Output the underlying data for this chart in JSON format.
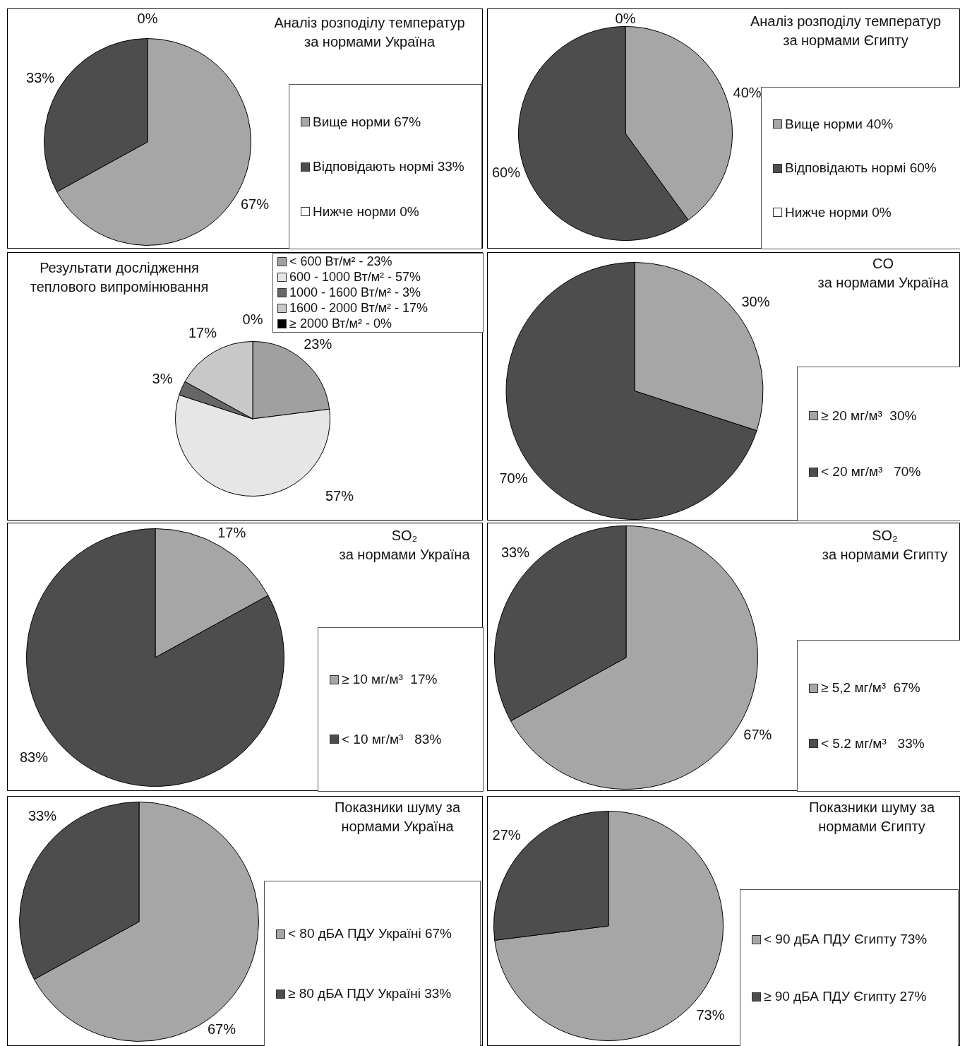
{
  "chart_data": [
    {
      "type": "pie",
      "title": "Аналіз розподілу температур за нормами Україна",
      "categories": [
        "Вище норми 67%",
        "Відповідають нормі 33%",
        "Нижче норми 0%"
      ],
      "values": [
        67,
        33,
        0
      ],
      "value_labels": [
        "67%",
        "33%",
        "0%"
      ],
      "colors": [
        "#a6a6a6",
        "#4d4d4d",
        "#ffffff"
      ],
      "legend": "right"
    },
    {
      "type": "pie",
      "title": "Аналіз розподілу температур за нормами Єгипту",
      "categories": [
        "Вище норми 40%",
        "Відповідають нормі 60%",
        "Нижче норми 0%"
      ],
      "values": [
        40,
        60,
        0
      ],
      "value_labels": [
        "40%",
        "60%",
        "0%"
      ],
      "colors": [
        "#a6a6a6",
        "#4d4d4d",
        "#ffffff"
      ],
      "legend": "right"
    },
    {
      "type": "pie",
      "title": "Результати дослідження теплового випромінювання",
      "categories": [
        "< 600 Вт/м² - 23%",
        "600 - 1000 Вт/м² - 57%",
        "1000 - 1600 Вт/м² - 3%",
        "1600 - 2000 Вт/м² - 17%",
        "≥ 2000 Вт/м² - 0%"
      ],
      "values": [
        23,
        57,
        3,
        17,
        0
      ],
      "value_labels": [
        "23%",
        "57%",
        "3%",
        "17%",
        "0%"
      ],
      "colors": [
        "#a0a0a0",
        "#e6e6e6",
        "#666666",
        "#c8c8c8",
        "#000000"
      ],
      "legend": "top right"
    },
    {
      "type": "pie",
      "title": "CO",
      "subtitle": "за нормами Україна",
      "categories": [
        "≥ 20 мг/м³  30%",
        "< 20 мг/м³   70%"
      ],
      "values": [
        30,
        70
      ],
      "value_labels": [
        "30%",
        "70%"
      ],
      "colors": [
        "#a6a6a6",
        "#4d4d4d"
      ],
      "legend": "right"
    },
    {
      "type": "pie",
      "title": "SO₂",
      "subtitle": "за нормами Україна",
      "categories": [
        "≥ 10 мг/м³  17%",
        "< 10 мг/м³   83%"
      ],
      "values": [
        17,
        83
      ],
      "value_labels": [
        "17%",
        "83%"
      ],
      "colors": [
        "#a6a6a6",
        "#4d4d4d"
      ],
      "legend": "right"
    },
    {
      "type": "pie",
      "title": "SO₂",
      "subtitle": "за нормами Єгипту",
      "categories": [
        "≥ 5,2 мг/м³  67%",
        "< 5.2 мг/м³   33%"
      ],
      "values": [
        67,
        33
      ],
      "value_labels": [
        "67%",
        "33%"
      ],
      "colors": [
        "#a6a6a6",
        "#4d4d4d"
      ],
      "legend": "right"
    },
    {
      "type": "pie",
      "title": "Показники шуму за нормами Україна",
      "categories": [
        "< 80 дБА ПДУ Україні 67%",
        "≥ 80 дБА ПДУ Україні 33%"
      ],
      "values": [
        67,
        33
      ],
      "value_labels": [
        "67%",
        "33%"
      ],
      "colors": [
        "#a6a6a6",
        "#4d4d4d"
      ],
      "legend": "right"
    },
    {
      "type": "pie",
      "title": "Показники шуму за нормами Єгипту",
      "categories": [
        "< 90 дБА ПДУ Єгипту 73%",
        "≥ 90 дБА ПДУ Єгипту 27%"
      ],
      "values": [
        73,
        27
      ],
      "value_labels": [
        "73%",
        "27%"
      ],
      "colors": [
        "#a6a6a6",
        "#4d4d4d"
      ],
      "legend": "right"
    }
  ]
}
